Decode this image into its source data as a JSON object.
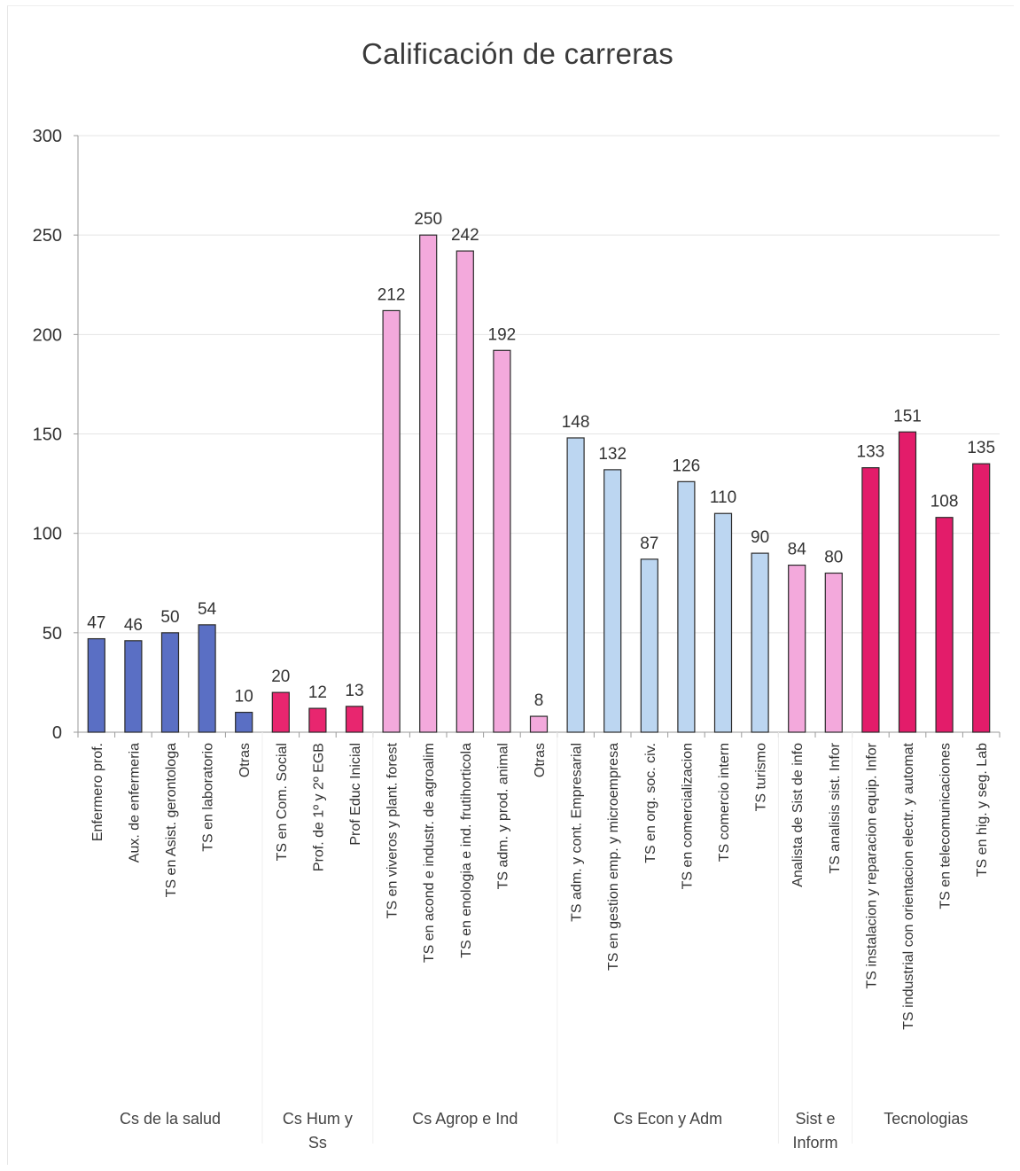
{
  "chart_data": {
    "type": "bar",
    "title": "Calificación de carreras",
    "xlabel": "",
    "ylabel": "",
    "ylim": [
      0,
      300
    ],
    "yticks": [
      0,
      50,
      100,
      150,
      200,
      250,
      300
    ],
    "grid": true,
    "legend": "none",
    "colors": {
      "Cs de la salud": "#5a6fc4",
      "Cs Hum y Ss": "#e8266f",
      "Cs Agrop e Ind": "#f3a9dc",
      "Cs Econ y Adm": "#bcd6f1",
      "Sist e Inform": "#f3a9dc",
      "Tecnologias": "#e31c6a"
    },
    "groups": [
      {
        "name": "Cs de la salud",
        "label_lines": [
          "Cs de la salud"
        ],
        "start": 0,
        "end": 4
      },
      {
        "name": "Cs Hum y Ss",
        "label_lines": [
          "Cs Hum  y",
          "Ss"
        ],
        "start": 5,
        "end": 7
      },
      {
        "name": "Cs Agrop e Ind",
        "label_lines": [
          "Cs Agrop  e Ind"
        ],
        "start": 8,
        "end": 12
      },
      {
        "name": "Cs Econ y Adm",
        "label_lines": [
          "Cs Econ  y Adm"
        ],
        "start": 13,
        "end": 18
      },
      {
        "name": "Sist e Inform",
        "label_lines": [
          "Sist  e",
          "Inform"
        ],
        "start": 19,
        "end": 20
      },
      {
        "name": "Tecnologias",
        "label_lines": [
          "Tecnologias"
        ],
        "start": 21,
        "end": 24
      }
    ],
    "categories": [
      "Enfermero prof.",
      "Aux. de enfermeria",
      "TS en Asist. gerontologa",
      "TS en laboratorio",
      "Otras",
      "TS en Com. Social",
      "Prof. de 1º y 2º EGB",
      "Prof Educ Inicial",
      "TS en viveros y plant. forest",
      "TS en acond e industr. de agroalim",
      "TS en enologia e ind. frutihorticola",
      "TS adm. y prod. animal",
      "Otras",
      "TS adm. y cont. Empresarial",
      "TS en gestion emp. y microempresa",
      "TS en org. soc. civ.",
      "TS en comercializacion",
      "TS comercio intern",
      "TS turismo",
      "Analista de Sist de info",
      "TS analisis sist. Infor",
      "TS instalacion y reparacion equip. Infor",
      "TS industrial con orientacion electr. y automat",
      "TS en telecomunicaciones",
      "TS en hig. y seg. Lab"
    ],
    "values": [
      47,
      46,
      50,
      54,
      10,
      20,
      12,
      13,
      212,
      250,
      242,
      192,
      8,
      148,
      132,
      87,
      126,
      110,
      90,
      84,
      80,
      133,
      151,
      108,
      135
    ]
  }
}
